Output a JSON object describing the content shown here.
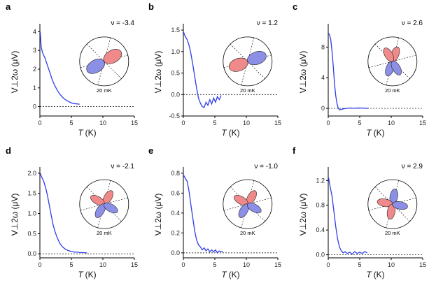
{
  "colors": {
    "curve": "#2e3fe8",
    "lobe_pos": "#f08a8a",
    "lobe_neg": "#8c8fe6",
    "axis": "#000000"
  },
  "chart_data": [
    {
      "panel": "a",
      "nu_label": "ν = -3.4",
      "type": "line",
      "xlabel": "T",
      "xunit": "(K)",
      "ylabel": "V⊥2ω (μV)",
      "xlim": [
        0,
        15
      ],
      "ylim": [
        -0.5,
        4.2
      ],
      "xticks": [
        0,
        5,
        10,
        15
      ],
      "yticks": [
        0,
        1,
        2,
        3,
        4
      ],
      "x": [
        0.05,
        0.2,
        0.4,
        0.6,
        0.8,
        1.0,
        1.3,
        1.6,
        2.0,
        2.4,
        2.8,
        3.2,
        3.6,
        4.0,
        4.5,
        5.0,
        5.5,
        6.0,
        6.3
      ],
      "y": [
        4.0,
        3.2,
        2.9,
        2.75,
        2.6,
        2.4,
        2.1,
        1.8,
        1.4,
        1.1,
        0.85,
        0.65,
        0.5,
        0.38,
        0.28,
        0.2,
        0.16,
        0.14,
        0.13
      ],
      "inset_label": "20 mK",
      "lobes": [
        {
          "angle": 30,
          "sign": "pos"
        },
        {
          "angle": 210,
          "sign": "neg"
        }
      ]
    },
    {
      "panel": "b",
      "nu_label": "ν = 1.2",
      "type": "line",
      "xlabel": "T",
      "xunit": "(K)",
      "ylabel": "V⊥2ω (μV)",
      "xlim": [
        0,
        15
      ],
      "ylim": [
        -0.5,
        1.55
      ],
      "xticks": [
        0,
        5,
        10,
        15
      ],
      "yticks": [
        -0.5,
        0.0,
        0.5,
        1.0,
        1.5
      ],
      "x": [
        0.05,
        0.3,
        0.6,
        0.9,
        1.2,
        1.5,
        1.8,
        2.1,
        2.4,
        2.7,
        3.0,
        3.3,
        3.6,
        3.9,
        4.2,
        4.5,
        4.8,
        5.1,
        5.4,
        5.7,
        6.0
      ],
      "y": [
        1.45,
        1.35,
        1.28,
        1.15,
        0.95,
        0.7,
        0.42,
        0.15,
        -0.08,
        -0.2,
        -0.28,
        -0.3,
        -0.18,
        -0.25,
        -0.12,
        -0.22,
        -0.08,
        -0.18,
        -0.05,
        -0.12,
        -0.02
      ],
      "inset_label": "20 mK",
      "lobes": [
        {
          "angle": 200,
          "sign": "pos"
        },
        {
          "angle": 20,
          "sign": "neg"
        }
      ]
    },
    {
      "panel": "c",
      "nu_label": "ν = 2.6",
      "type": "line",
      "xlabel": "T",
      "xunit": "(K)",
      "ylabel": "V⊥2ω (μV)",
      "xlim": [
        0,
        15
      ],
      "ylim": [
        -1,
        10.5
      ],
      "xticks": [
        0,
        5,
        10,
        15
      ],
      "yticks": [
        0,
        4,
        8
      ],
      "x": [
        0.05,
        0.2,
        0.4,
        0.6,
        0.8,
        1.0,
        1.2,
        1.4,
        1.6,
        1.8,
        2.0,
        2.5,
        3.0,
        3.5,
        4.0,
        5.0,
        6.0,
        6.4
      ],
      "y": [
        9.8,
        9.6,
        9.0,
        7.5,
        5.5,
        3.2,
        1.6,
        0.6,
        0.0,
        -0.2,
        -0.15,
        -0.05,
        0.0,
        0.05,
        0.0,
        0.05,
        0.0,
        0.02
      ],
      "inset_label": "20 mK",
      "lobes": [
        {
          "angle": 250,
          "sign": "neg"
        },
        {
          "angle": 70,
          "sign": "pos"
        },
        {
          "angle": 120,
          "sign": "pos"
        },
        {
          "angle": 300,
          "sign": "neg"
        }
      ]
    },
    {
      "panel": "d",
      "nu_label": "ν = -2.1",
      "type": "line",
      "xlabel": "T",
      "xunit": "(K)",
      "ylabel": "V⊥2ω (μV)",
      "xlim": [
        0,
        15
      ],
      "ylim": [
        -0.1,
        2.05
      ],
      "xticks": [
        0,
        5,
        10,
        15
      ],
      "yticks": [
        0.0,
        0.5,
        1.0,
        1.5,
        2.0
      ],
      "x": [
        0.05,
        0.3,
        0.6,
        0.9,
        1.2,
        1.5,
        1.8,
        2.1,
        2.4,
        2.8,
        3.2,
        3.6,
        4.0,
        4.5,
        5.0,
        5.5,
        6.0,
        6.5,
        7.0,
        7.5
      ],
      "y": [
        2.0,
        1.9,
        1.8,
        1.65,
        1.45,
        1.2,
        0.95,
        0.72,
        0.55,
        0.38,
        0.25,
        0.17,
        0.12,
        0.08,
        0.06,
        0.04,
        0.04,
        0.03,
        0.03,
        0.02
      ],
      "inset_label": "20 mK",
      "lobes": [
        {
          "angle": 60,
          "sign": "pos"
        },
        {
          "angle": 150,
          "sign": "pos"
        },
        {
          "angle": 240,
          "sign": "neg"
        },
        {
          "angle": 330,
          "sign": "neg"
        }
      ]
    },
    {
      "panel": "e",
      "nu_label": "ν = -1.0",
      "type": "line",
      "xlabel": "T",
      "xunit": "(K)",
      "ylabel": "V⊥2ω (μV)",
      "xlim": [
        0,
        15
      ],
      "ylim": [
        -0.05,
        0.82
      ],
      "xticks": [
        0,
        5,
        10,
        15
      ],
      "yticks": [
        0.0,
        0.2,
        0.4,
        0.6,
        0.8
      ],
      "x": [
        0.05,
        0.3,
        0.6,
        0.9,
        1.2,
        1.5,
        1.8,
        2.1,
        2.4,
        2.7,
        3.0,
        3.3,
        3.6,
        3.9,
        4.2,
        4.5,
        4.8,
        5.1,
        5.4,
        5.7,
        6.0,
        6.3
      ],
      "y": [
        0.78,
        0.75,
        0.72,
        0.62,
        0.48,
        0.35,
        0.22,
        0.13,
        0.08,
        0.06,
        0.03,
        0.05,
        0.02,
        0.04,
        0.01,
        0.03,
        0.01,
        0.03,
        0.0,
        0.02,
        0.01,
        0.01
      ],
      "inset_label": "20 mK",
      "lobes": [
        {
          "angle": 60,
          "sign": "pos"
        },
        {
          "angle": 150,
          "sign": "pos"
        },
        {
          "angle": 240,
          "sign": "neg"
        },
        {
          "angle": 330,
          "sign": "neg"
        }
      ]
    },
    {
      "panel": "f",
      "nu_label": "ν = 2.9",
      "type": "line",
      "xlabel": "T",
      "xunit": "(K)",
      "ylabel": "V⊥2ω (μV)",
      "xlim": [
        0,
        15
      ],
      "ylim": [
        -0.05,
        1.35
      ],
      "xticks": [
        0,
        5,
        10,
        15
      ],
      "yticks": [
        0.0,
        0.4,
        0.8,
        1.2
      ],
      "x": [
        0.05,
        0.3,
        0.6,
        0.9,
        1.2,
        1.5,
        1.8,
        2.1,
        2.4,
        2.7,
        3.0,
        3.4,
        3.8,
        4.2,
        4.6,
        5.0,
        5.4,
        5.8,
        6.2
      ],
      "y": [
        1.25,
        1.1,
        0.95,
        0.7,
        0.45,
        0.25,
        0.12,
        0.06,
        0.03,
        0.05,
        0.02,
        0.04,
        0.01,
        0.05,
        0.02,
        0.04,
        0.02,
        0.05,
        0.03
      ],
      "inset_label": "20 mK",
      "lobes": [
        {
          "angle": 80,
          "sign": "neg"
        },
        {
          "angle": 170,
          "sign": "pos"
        },
        {
          "angle": 260,
          "sign": "pos"
        },
        {
          "angle": 350,
          "sign": "neg"
        }
      ]
    }
  ]
}
